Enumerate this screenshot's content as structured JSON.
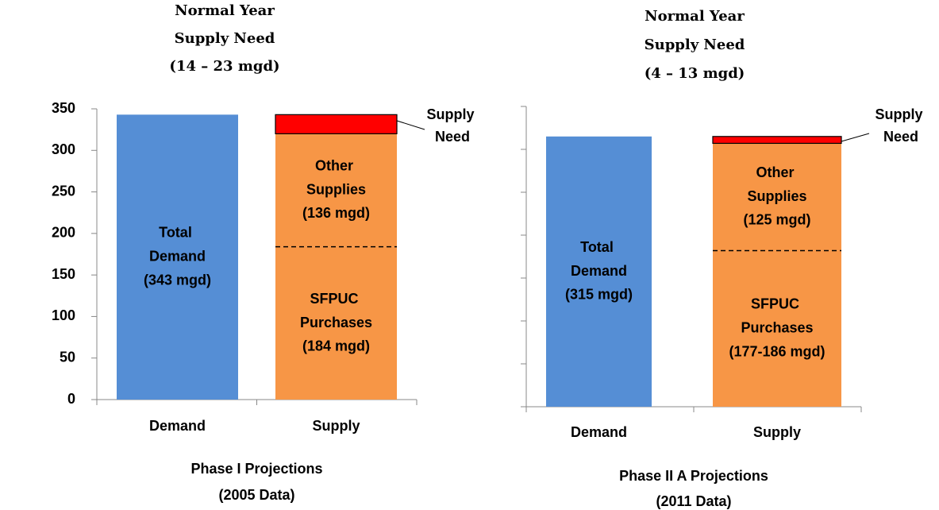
{
  "chart_data": [
    {
      "type": "bar",
      "stacked": true,
      "title": [
        "Normal Year",
        "Supply Need",
        "(14 – 23 mgd)"
      ],
      "xlabel": [
        "Phase I Projections",
        "(2005 Data)"
      ],
      "categories": [
        "Demand",
        "Supply"
      ],
      "series": [
        {
          "name": "Total Demand",
          "color": "#558ed5",
          "values": [
            343,
            null
          ],
          "value_labels": [
            "(343 mgd)",
            null
          ]
        },
        {
          "name": "SFPUC Purchases",
          "color": "#f79646",
          "values": [
            null,
            184
          ],
          "value_labels": [
            null,
            "(184 mgd)"
          ]
        },
        {
          "name": "Other Supplies",
          "color": "#f79646",
          "values": [
            null,
            136
          ],
          "value_labels": [
            null,
            "(136 mgd)"
          ],
          "bottom_edge": "dashed"
        },
        {
          "name": "Supply Need",
          "color": "#ff0000",
          "values": [
            null,
            23
          ],
          "edge_color": "#000000",
          "label_position": "outside"
        }
      ],
      "ylim": [
        0,
        350
      ],
      "yticks": [
        0,
        50,
        100,
        150,
        200,
        250,
        300,
        350
      ],
      "show_ytick_labels": true,
      "grid": false
    },
    {
      "type": "bar",
      "stacked": true,
      "title": [
        "Normal Year",
        "Supply Need",
        "(4 – 13 mgd)"
      ],
      "xlabel": [
        "Phase II A Projections",
        "(2011 Data)"
      ],
      "categories": [
        "Demand",
        "Supply"
      ],
      "series": [
        {
          "name": "Total Demand",
          "color": "#558ed5",
          "values": [
            315,
            null
          ],
          "value_labels": [
            "(315 mgd)",
            null
          ]
        },
        {
          "name": "SFPUC Purchases",
          "color": "#f79646",
          "values": [
            null,
            182
          ],
          "value_labels": [
            null,
            "(177-186 mgd)"
          ]
        },
        {
          "name": "Other Supplies",
          "color": "#f79646",
          "values": [
            null,
            125
          ],
          "value_labels": [
            null,
            "(125 mgd)"
          ],
          "bottom_edge": "dashed"
        },
        {
          "name": "Supply Need",
          "color": "#ff0000",
          "values": [
            null,
            8
          ],
          "edge_color": "#000000",
          "label_position": "outside"
        }
      ],
      "ylim": [
        0,
        350
      ],
      "yticks": [
        0,
        50,
        100,
        150,
        200,
        250,
        300,
        350
      ],
      "show_ytick_labels": false,
      "grid": false
    }
  ]
}
